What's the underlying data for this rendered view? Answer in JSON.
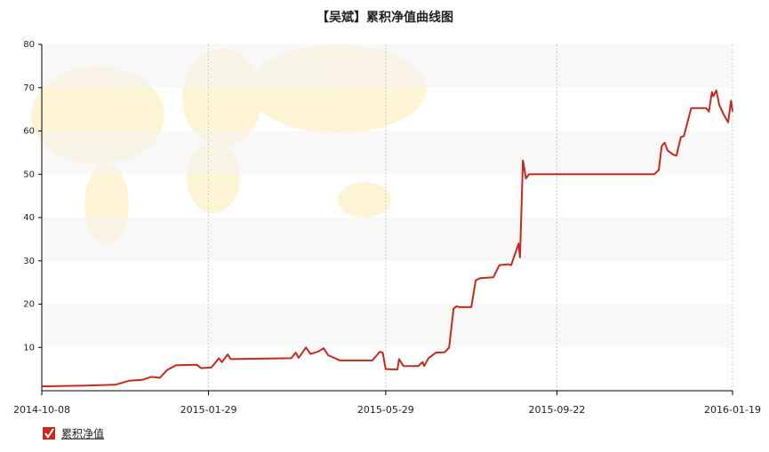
{
  "chart_data": {
    "type": "line",
    "title": "【吴斌】累积净值曲线图",
    "x": [
      "2014-10-08",
      "2014-11-09",
      "2014-11-27",
      "2014-12-06",
      "2014-12-15",
      "2014-12-21",
      "2014-12-27",
      "2015-01-01",
      "2015-01-07",
      "2015-01-21",
      "2015-01-24",
      "2015-01-31",
      "2015-02-05",
      "2015-02-07",
      "2015-02-11",
      "2015-02-13",
      "2015-03-26",
      "2015-03-29",
      "2015-03-31",
      "2015-04-05",
      "2015-04-08",
      "2015-04-13",
      "2015-04-17",
      "2015-04-20",
      "2015-04-28",
      "2015-05-20",
      "2015-05-25",
      "2015-05-27",
      "2015-05-29",
      "2015-06-06",
      "2015-06-07",
      "2015-06-10",
      "2015-06-20",
      "2015-06-23",
      "2015-06-24",
      "2015-06-27",
      "2015-07-02",
      "2015-07-08",
      "2015-07-11",
      "2015-07-14",
      "2015-07-16",
      "2015-07-18",
      "2015-07-26",
      "2015-07-29",
      "2015-08-01",
      "2015-08-10",
      "2015-08-14",
      "2015-08-20",
      "2015-08-22",
      "2015-08-27",
      "2015-08-28",
      "2015-08-30",
      "2015-09-01",
      "2015-09-03",
      "2015-11-27",
      "2015-11-30",
      "2015-12-02",
      "2015-12-04",
      "2015-12-06",
      "2015-12-10",
      "2015-12-12",
      "2015-12-15",
      "2015-12-17",
      "2015-12-22",
      "2016-01-01",
      "2016-01-03",
      "2016-01-05",
      "2016-01-06",
      "2016-01-08",
      "2016-01-10",
      "2016-01-13",
      "2016-01-16",
      "2016-01-18",
      "2016-01-19"
    ],
    "series": [
      {
        "name": "累积净值",
        "color": "#c8281e",
        "values": [
          1.0,
          1.2,
          1.4,
          2.3,
          2.5,
          3.2,
          3.0,
          4.8,
          5.9,
          6.0,
          5.2,
          5.4,
          7.5,
          6.6,
          8.4,
          7.3,
          7.5,
          8.8,
          7.6,
          10.0,
          8.5,
          9.0,
          9.8,
          8.2,
          7.0,
          7.0,
          9.0,
          8.8,
          5.0,
          4.9,
          7.3,
          5.7,
          5.7,
          6.6,
          5.7,
          7.5,
          8.8,
          8.9,
          10.0,
          19.0,
          19.5,
          19.3,
          19.3,
          25.5,
          26.0,
          26.2,
          29.0,
          29.2,
          29.0,
          34.0,
          30.8,
          53.2,
          49.0,
          50.0,
          50.0,
          51.0,
          56.5,
          57.3,
          55.5,
          54.5,
          54.3,
          58.6,
          58.8,
          65.3,
          65.3,
          64.5,
          69.0,
          68.0,
          69.4,
          66.0,
          63.8,
          62.0,
          67.0,
          64.5
        ]
      }
    ],
    "xlim": [
      "2014-10-08",
      "2016-01-19"
    ],
    "xticks": [
      "2014-10-08",
      "2015-01-29",
      "2015-05-29",
      "2015-09-22",
      "2016-01-19"
    ],
    "ylim": [
      0,
      80
    ],
    "yticks": [
      10,
      20,
      30,
      40,
      50,
      60,
      70,
      80
    ],
    "grid": true
  }
}
